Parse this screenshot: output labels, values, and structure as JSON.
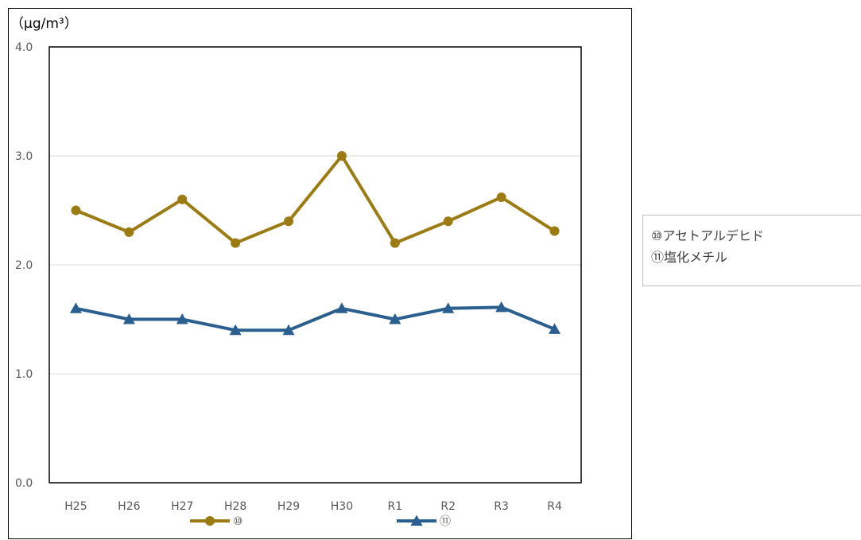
{
  "chart_data": {
    "type": "line",
    "unit_label": "（μg/m³）",
    "categories": [
      "H25",
      "H26",
      "H27",
      "H28",
      "H29",
      "H30",
      "R1",
      "R2",
      "R3",
      "R4"
    ],
    "ylim": [
      0,
      4
    ],
    "yticks": [
      "0.0",
      "1.0",
      "2.0",
      "3.0",
      "4.0"
    ],
    "grid": true,
    "series": [
      {
        "name": "⑩",
        "color": "#9c7b12",
        "marker": "circle",
        "values": [
          2.5,
          2.3,
          2.6,
          2.2,
          2.4,
          3.0,
          2.2,
          2.4,
          2.62,
          2.31
        ]
      },
      {
        "name": "⑪",
        "color": "#2a5f8f",
        "marker": "triangle",
        "values": [
          1.6,
          1.5,
          1.5,
          1.4,
          1.4,
          1.6,
          1.5,
          1.6,
          1.61,
          1.41
        ]
      }
    ],
    "legend_position": "bottom"
  },
  "side_legend": {
    "items": [
      "⑩アセトアルデヒド",
      "⑪塩化メチル"
    ]
  }
}
